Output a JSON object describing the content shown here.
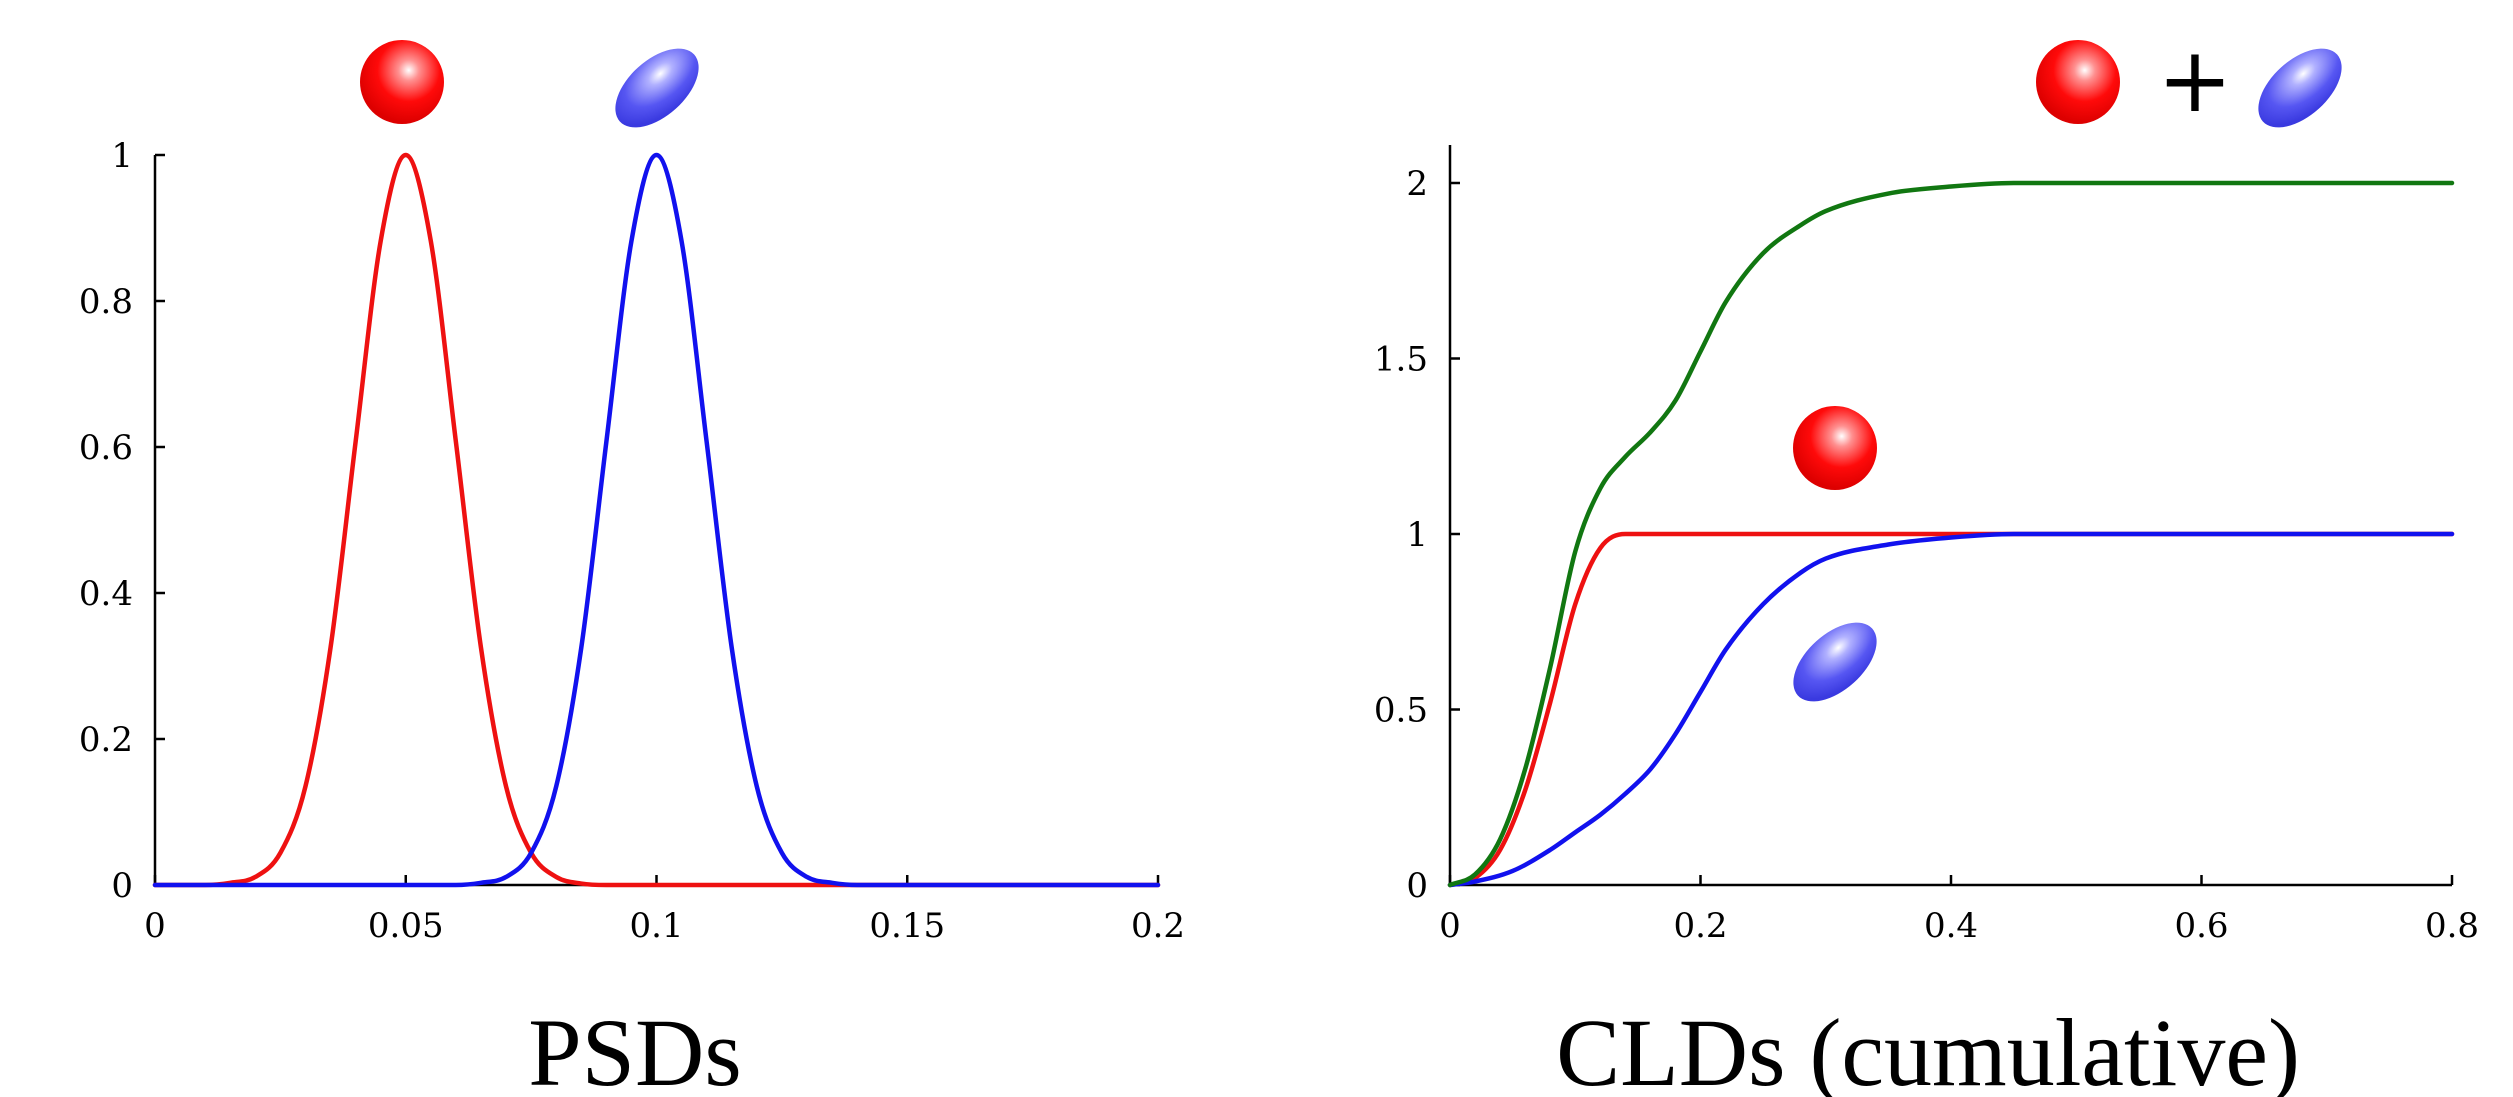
{
  "chart_data": [
    {
      "type": "line",
      "title": "PSDs",
      "xlabel": "",
      "ylabel": "",
      "xlim": [
        0,
        0.2
      ],
      "ylim": [
        0,
        1
      ],
      "x_ticks": [
        {
          "value": 0,
          "label": "0"
        },
        {
          "value": 0.05,
          "label": "0.05"
        },
        {
          "value": 0.1,
          "label": "0.1"
        },
        {
          "value": 0.15,
          "label": "0.15"
        },
        {
          "value": 0.2,
          "label": "0.2"
        }
      ],
      "y_ticks": [
        {
          "value": 0,
          "label": "0"
        },
        {
          "value": 0.2,
          "label": "0.2"
        },
        {
          "value": 0.4,
          "label": "0.4"
        },
        {
          "value": 0.6,
          "label": "0.6"
        },
        {
          "value": 0.8,
          "label": "0.8"
        },
        {
          "value": 1,
          "label": "1"
        }
      ],
      "grid": false,
      "legend": "icons above peaks",
      "series": [
        {
          "icon": "sphere",
          "color": "#ee1111",
          "x": [
            0,
            0.01,
            0.015,
            0.02,
            0.025,
            0.03,
            0.035,
            0.04,
            0.045,
            0.05,
            0.055,
            0.06,
            0.065,
            0.07,
            0.075,
            0.08,
            0.085,
            0.09,
            0.1,
            0.12,
            0.15,
            0.2
          ],
          "y": [
            0,
            0,
            0.003,
            0.011,
            0.044,
            0.135,
            0.325,
            0.607,
            0.882,
            1,
            0.882,
            0.607,
            0.325,
            0.135,
            0.044,
            0.011,
            0.002,
            0,
            0,
            0,
            0,
            0
          ]
        },
        {
          "icon": "ellipsoid",
          "color": "#1111ee",
          "x": [
            0,
            0.05,
            0.06,
            0.065,
            0.07,
            0.075,
            0.08,
            0.085,
            0.09,
            0.095,
            0.1,
            0.105,
            0.11,
            0.115,
            0.12,
            0.125,
            0.13,
            0.135,
            0.14,
            0.15,
            0.2
          ],
          "y": [
            0,
            0,
            0,
            0.003,
            0.011,
            0.044,
            0.135,
            0.325,
            0.607,
            0.882,
            1,
            0.882,
            0.607,
            0.325,
            0.135,
            0.044,
            0.011,
            0.003,
            0,
            0,
            0
          ]
        }
      ]
    },
    {
      "type": "line",
      "title": "CLDs (cumulative)",
      "xlabel": "",
      "ylabel": "",
      "xlim": [
        0,
        0.8
      ],
      "ylim": [
        0,
        2.1
      ],
      "x_ticks": [
        {
          "value": 0,
          "label": "0"
        },
        {
          "value": 0.2,
          "label": "0.2"
        },
        {
          "value": 0.4,
          "label": "0.4"
        },
        {
          "value": 0.6,
          "label": "0.6"
        },
        {
          "value": 0.8,
          "label": "0.8"
        }
      ],
      "y_ticks": [
        {
          "value": 0,
          "label": "0"
        },
        {
          "value": 0.5,
          "label": "0.5"
        },
        {
          "value": 1,
          "label": "1"
        },
        {
          "value": 1.5,
          "label": "1.5"
        },
        {
          "value": 2,
          "label": "2"
        }
      ],
      "grid": false,
      "legend": "icons next to curves",
      "plus_label": "+",
      "series": [
        {
          "icon": "sphere",
          "color": "#ee1111",
          "x": [
            0,
            0.02,
            0.04,
            0.06,
            0.08,
            0.1,
            0.12,
            0.14,
            0.16,
            0.2,
            0.4,
            0.8
          ],
          "y": [
            0,
            0.02,
            0.1,
            0.27,
            0.52,
            0.8,
            0.96,
            1.0,
            1.0,
            1.0,
            1.0,
            1.0
          ]
        },
        {
          "icon": "ellipsoid",
          "color": "#1111ee",
          "x": [
            0,
            0.02,
            0.05,
            0.08,
            0.1,
            0.12,
            0.14,
            0.16,
            0.18,
            0.2,
            0.22,
            0.25,
            0.28,
            0.3,
            0.35,
            0.4,
            0.45,
            0.5,
            0.8
          ],
          "y": [
            0,
            0.01,
            0.04,
            0.1,
            0.15,
            0.2,
            0.26,
            0.33,
            0.43,
            0.55,
            0.67,
            0.8,
            0.89,
            0.93,
            0.97,
            0.99,
            1.0,
            1.0,
            1.0
          ]
        },
        {
          "icon": "sphere+ellipsoid",
          "color": "#117711",
          "x": [
            0,
            0.02,
            0.04,
            0.06,
            0.08,
            0.1,
            0.12,
            0.14,
            0.16,
            0.18,
            0.2,
            0.22,
            0.25,
            0.28,
            0.3,
            0.35,
            0.4,
            0.45,
            0.5,
            0.8
          ],
          "y": [
            0,
            0.03,
            0.13,
            0.33,
            0.62,
            0.95,
            1.13,
            1.22,
            1.29,
            1.38,
            1.52,
            1.66,
            1.8,
            1.88,
            1.92,
            1.97,
            1.99,
            2.0,
            2.0,
            2.0
          ]
        }
      ]
    }
  ]
}
